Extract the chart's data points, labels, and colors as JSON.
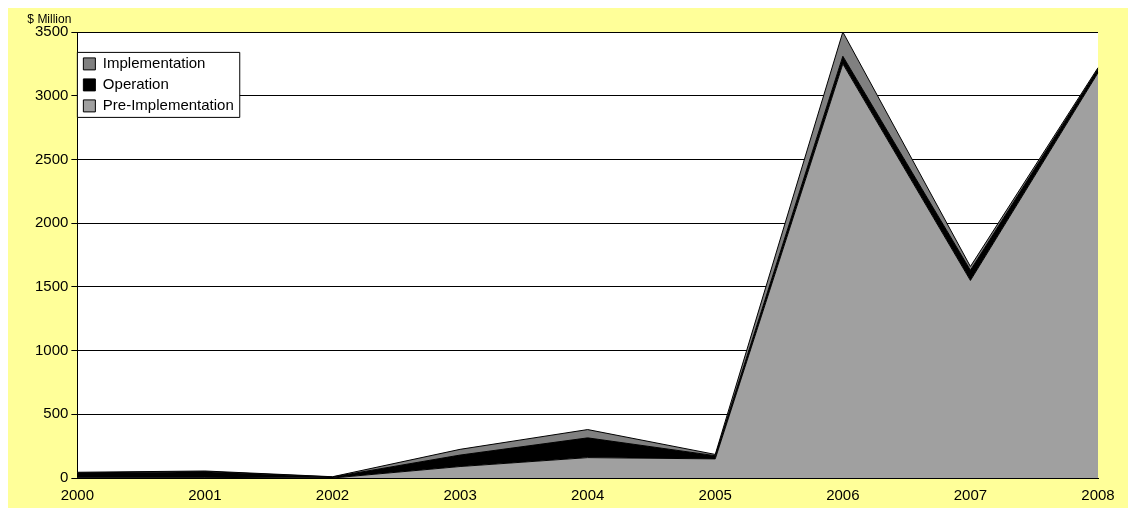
{
  "chart_data": {
    "type": "area",
    "stacked": true,
    "ylabel": "$ Million",
    "categories": [
      "2000",
      "2001",
      "2002",
      "2003",
      "2004",
      "2005",
      "2006",
      "2007",
      "2008"
    ],
    "series": [
      {
        "name": "Pre-Implementation",
        "color": "#a0a0a0",
        "values": [
          5,
          5,
          0,
          90,
          160,
          150,
          3250,
          1550,
          3180
        ]
      },
      {
        "name": "Operation",
        "color": "#000000",
        "values": [
          35,
          45,
          8,
          90,
          155,
          25,
          60,
          80,
          30
        ]
      },
      {
        "name": "Implementation",
        "color": "#808080",
        "values": [
          5,
          5,
          2,
          45,
          65,
          10,
          190,
          30,
          10
        ]
      }
    ],
    "ylim": [
      0,
      3500
    ],
    "yticks": [
      0,
      500,
      1000,
      1500,
      2000,
      2500,
      3000,
      3500
    ],
    "grid": "y",
    "legend": "top left"
  }
}
